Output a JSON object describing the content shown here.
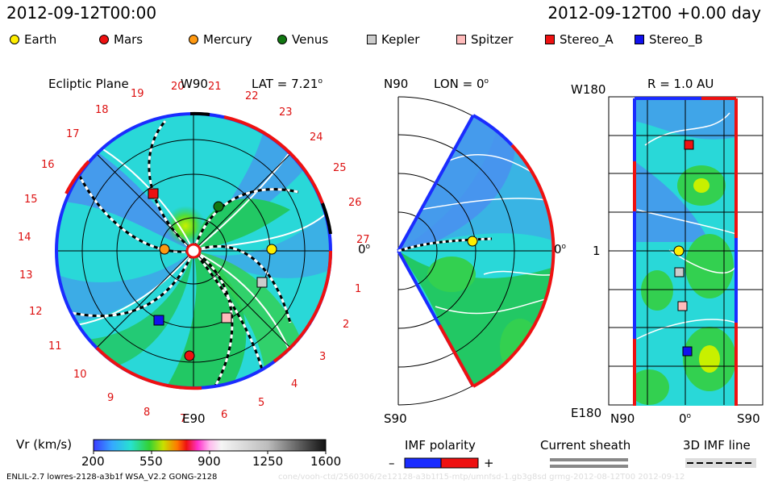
{
  "header": {
    "left_timestamp": "2012-09-12T00:00",
    "right_timestamp": "2012-09-12T00 +0.00 day"
  },
  "legend": [
    {
      "name": "Earth",
      "shape": "circle",
      "color": "#ffee00"
    },
    {
      "name": "Mars",
      "shape": "circle",
      "color": "#ee1111"
    },
    {
      "name": "Mercury",
      "shape": "circle",
      "color": "#ff9911"
    },
    {
      "name": "Venus",
      "shape": "circle",
      "color": "#117711"
    },
    {
      "name": "Kepler",
      "shape": "square",
      "color": "#cccccc"
    },
    {
      "name": "Spitzer",
      "shape": "square",
      "color": "#ffbbbb"
    },
    {
      "name": "Stereo_A",
      "shape": "square",
      "color": "#ee1111"
    },
    {
      "name": "Stereo_B",
      "shape": "square",
      "color": "#1111ee"
    }
  ],
  "ecliptic": {
    "title": "Ecliptic Plane",
    "top_label": "W90",
    "bottom_label": "E90",
    "right_label": "0",
    "lat_label": "LAT = 7.21",
    "sectors": [
      "20",
      "21",
      "22",
      "23",
      "24",
      "25",
      "26",
      "27",
      "1",
      "2",
      "3",
      "4",
      "5",
      "6",
      "7",
      "8",
      "9",
      "10",
      "11",
      "12",
      "13",
      "14",
      "15",
      "16",
      "17",
      "18",
      "19"
    ]
  },
  "meridional": {
    "top_label": "N90",
    "bottom_label": "S90",
    "right_label": "0",
    "lon_label": "LON = 0"
  },
  "radial": {
    "title": "R = 1.0 AU",
    "top_label": "W180",
    "bottom_label": "E180",
    "mid_label": "1",
    "x_left": "N90",
    "x_mid": "0",
    "x_right": "S90"
  },
  "colorbar": {
    "label": "Vr (km/s)",
    "ticks": [
      "200",
      "550",
      "900",
      "1250",
      "1600"
    ]
  },
  "imf": {
    "polarity_label": "IMF polarity",
    "minus": "–",
    "plus": "+",
    "sheath_label": "Current sheath",
    "line_label": "3D IMF line"
  },
  "footer": {
    "model_info": "ENLIL-2.7 lowres-2128-a3b1f WSA_V2.2 GONG-2128",
    "watermark": "cone/vooh-ctd/2560306/2e12128-a3b1f15-mtp/umnfsd-1.gb3g8sd grmg-2012-08-12T00 2012-09-12"
  },
  "chart_data": {
    "type": "heatmap",
    "variable": "Vr (km/s)",
    "vmin": 200,
    "vmax": 1600,
    "objects": [
      {
        "name": "Earth",
        "panel": "ecliptic",
        "x": 0.97,
        "y": 0.02
      },
      {
        "name": "Mars",
        "panel": "ecliptic",
        "x": -0.05,
        "y": -1.3
      },
      {
        "name": "Mercury",
        "panel": "ecliptic",
        "x": -0.36,
        "y": 0.02
      },
      {
        "name": "Venus",
        "panel": "ecliptic",
        "x": 0.31,
        "y": 0.55
      },
      {
        "name": "Kepler",
        "panel": "ecliptic",
        "x": 0.85,
        "y": -0.39
      },
      {
        "name": "Spitzer",
        "panel": "ecliptic",
        "x": 0.41,
        "y": -0.83
      },
      {
        "name": "Stereo_A",
        "panel": "ecliptic",
        "x": -0.5,
        "y": 0.71
      },
      {
        "name": "Stereo_B",
        "panel": "ecliptic",
        "x": -0.43,
        "y": -0.86
      }
    ]
  }
}
